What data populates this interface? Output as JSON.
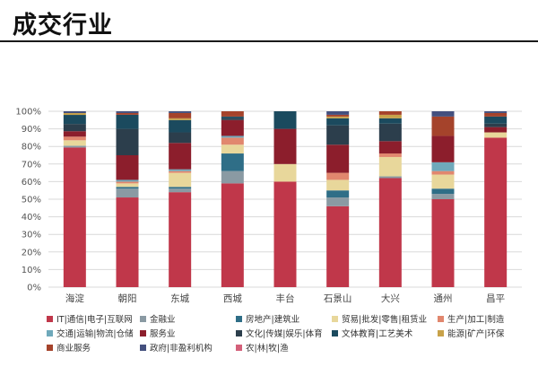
{
  "page": {
    "title": "成交行业"
  },
  "chart_data": {
    "type": "bar",
    "stacked": true,
    "percent": true,
    "categories": [
      "海淀",
      "朝阳",
      "东城",
      "西城",
      "丰台",
      "石景山",
      "大兴",
      "通州",
      "昌平"
    ],
    "y_ticks": [
      "0%",
      "10%",
      "20%",
      "30%",
      "40%",
      "50%",
      "60%",
      "70%",
      "80%",
      "90%",
      "100%"
    ],
    "ylim": [
      0,
      100
    ],
    "grid": true,
    "legend_position": "bottom",
    "series": [
      {
        "name": "IT|通信|电子|互联网",
        "color": "#c0374a",
        "values": [
          77,
          51,
          54,
          59,
          60,
          46,
          62,
          50,
          85
        ]
      },
      {
        "name": "金融业",
        "color": "#8a9aa3",
        "values": [
          1,
          5,
          2,
          7,
          0,
          5,
          1,
          3,
          0
        ]
      },
      {
        "name": "房地产|建筑业",
        "color": "#2f6e87",
        "values": [
          0,
          1,
          1,
          10,
          0,
          4,
          0,
          3,
          0
        ]
      },
      {
        "name": "贸易|批发|零售|租赁业",
        "color": "#e8d79b",
        "values": [
          3,
          2,
          8,
          5,
          10,
          6,
          11,
          8,
          3
        ]
      },
      {
        "name": "生产|加工|制造",
        "color": "#e1876e",
        "values": [
          2,
          1,
          1,
          4,
          0,
          4,
          2,
          2,
          0
        ]
      },
      {
        "name": "交通|运输|物流|仓储",
        "color": "#6fa9bb",
        "values": [
          0,
          1,
          1,
          1,
          0,
          0,
          0,
          5,
          0
        ]
      },
      {
        "name": "服务业",
        "color": "#8c1e2c",
        "values": [
          3,
          14,
          15,
          9,
          20,
          16,
          7,
          15,
          3
        ]
      },
      {
        "name": "文化|传媒|娱乐|体育",
        "color": "#2c3e4c",
        "values": [
          4,
          15,
          6,
          1,
          0,
          11,
          10,
          0,
          2
        ]
      },
      {
        "name": "文体教育|工艺美术",
        "color": "#1b4a5e",
        "values": [
          5,
          8,
          7,
          1,
          10,
          4,
          3,
          0,
          4
        ]
      },
      {
        "name": "能源|矿产|环保",
        "color": "#c8a24a",
        "values": [
          1,
          0,
          1,
          0,
          0,
          1,
          2,
          0,
          0
        ]
      },
      {
        "name": "商业服务",
        "color": "#a5432b",
        "values": [
          0,
          1,
          3,
          3,
          0,
          1,
          2,
          11,
          2
        ]
      },
      {
        "name": "政府|非盈利机构",
        "color": "#44507e",
        "values": [
          1,
          1,
          1,
          0,
          0,
          2,
          0,
          3,
          1
        ]
      },
      {
        "name": "农|林|牧|渔",
        "color": "#d4607a",
        "values": [
          0,
          0,
          0,
          0,
          0,
          0,
          0,
          0,
          0
        ]
      }
    ]
  }
}
